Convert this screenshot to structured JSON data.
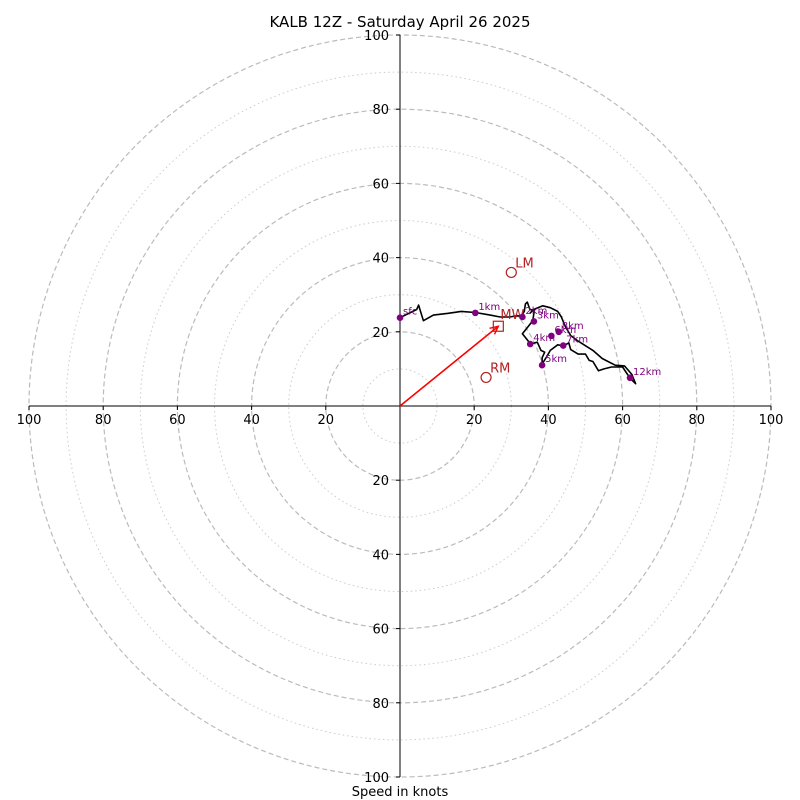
{
  "chart_data": {
    "type": "hodograph",
    "title": "KALB 12Z - Saturday April 26 2025",
    "xlabel": "Speed in knots",
    "units": "knots",
    "range": [
      -100,
      100
    ],
    "ring_values": [
      20,
      40,
      60,
      80,
      100
    ],
    "minor_ring_values": [
      10,
      30,
      50,
      70,
      90
    ],
    "tick_labels": {
      "x_left": [
        "100",
        "80",
        "60",
        "40",
        "20"
      ],
      "x_right": [
        "20",
        "40",
        "60",
        "80",
        "100"
      ],
      "y_top": [
        "100",
        "80",
        "60",
        "40",
        "20"
      ],
      "y_bottom": [
        "20",
        "40",
        "60",
        "80",
        "100"
      ]
    },
    "grid": true,
    "colors": {
      "trace": "#000000",
      "height_points": "#800080",
      "markers": "#b22222",
      "shear_vector": "#ff0000",
      "grid": "#bbbbbb"
    },
    "trace": [
      [
        0,
        23.8
      ],
      [
        4.5,
        26
      ],
      [
        5,
        27.2
      ],
      [
        6.3,
        23
      ],
      [
        9,
        24.5
      ],
      [
        13,
        25
      ],
      [
        16.5,
        25.5
      ],
      [
        20.3,
        25.2
      ],
      [
        24.3,
        24.5
      ],
      [
        27,
        24
      ],
      [
        29.5,
        24
      ],
      [
        31.5,
        24.3
      ],
      [
        32.6,
        24.2
      ],
      [
        33.5,
        25.5
      ],
      [
        33.8,
        27.5
      ],
      [
        34.3,
        28
      ],
      [
        35,
        26
      ],
      [
        36.2,
        25.8
      ],
      [
        35.8,
        23
      ],
      [
        33,
        19.5
      ],
      [
        35.2,
        16.7
      ],
      [
        37,
        17.2
      ],
      [
        38,
        15
      ],
      [
        39,
        14.5
      ],
      [
        38.3,
        13
      ],
      [
        38.3,
        11.3
      ],
      [
        39.5,
        13.2
      ],
      [
        40.5,
        15
      ],
      [
        42.5,
        16.5
      ],
      [
        44,
        16.2
      ],
      [
        45.5,
        17
      ],
      [
        46,
        15.2
      ],
      [
        48,
        14
      ],
      [
        50,
        14
      ],
      [
        51,
        12.3
      ],
      [
        52,
        12
      ],
      [
        53.5,
        9.5
      ],
      [
        55,
        10
      ],
      [
        57,
        10.5
      ],
      [
        60,
        10.5
      ],
      [
        62,
        7.5
      ],
      [
        63.5,
        6
      ],
      [
        62.5,
        8.5
      ],
      [
        60.5,
        10.8
      ],
      [
        58,
        11
      ],
      [
        54.5,
        12.8
      ],
      [
        52,
        15
      ],
      [
        48,
        17.5
      ],
      [
        46,
        19
      ],
      [
        44.5,
        21.5
      ],
      [
        43.5,
        24
      ],
      [
        42.5,
        25.5
      ],
      [
        40.5,
        26.5
      ],
      [
        38.5,
        27
      ],
      [
        36,
        26
      ],
      [
        35,
        25
      ]
    ],
    "height_points": [
      {
        "label": "sfc",
        "u": 0,
        "v": 23.8
      },
      {
        "label": "1km",
        "u": 20.3,
        "v": 25.1
      },
      {
        "label": "2km",
        "u": 33.0,
        "v": 24.0
      },
      {
        "label": "3km",
        "u": 36.1,
        "v": 22.8
      },
      {
        "label": "4km",
        "u": 35.1,
        "v": 16.7
      },
      {
        "label": "5km",
        "u": 38.3,
        "v": 11.0
      },
      {
        "label": "6km",
        "u": 40.8,
        "v": 18.9
      },
      {
        "label": "7km",
        "u": 44.0,
        "v": 16.3
      },
      {
        "label": "8km",
        "u": 42.8,
        "v": 20.0
      },
      {
        "label": "12km",
        "u": 62.0,
        "v": 7.6
      }
    ],
    "markers": [
      {
        "label": "LM",
        "u": 30.0,
        "v": 36.0,
        "shape": "circle"
      },
      {
        "label": "RM",
        "u": 23.2,
        "v": 7.7,
        "shape": "circle"
      },
      {
        "label": "MW",
        "u": 26.5,
        "v": 21.5,
        "shape": "square"
      }
    ],
    "shear_vector": {
      "from": [
        0,
        0
      ],
      "to": [
        26.5,
        21.5
      ]
    }
  }
}
